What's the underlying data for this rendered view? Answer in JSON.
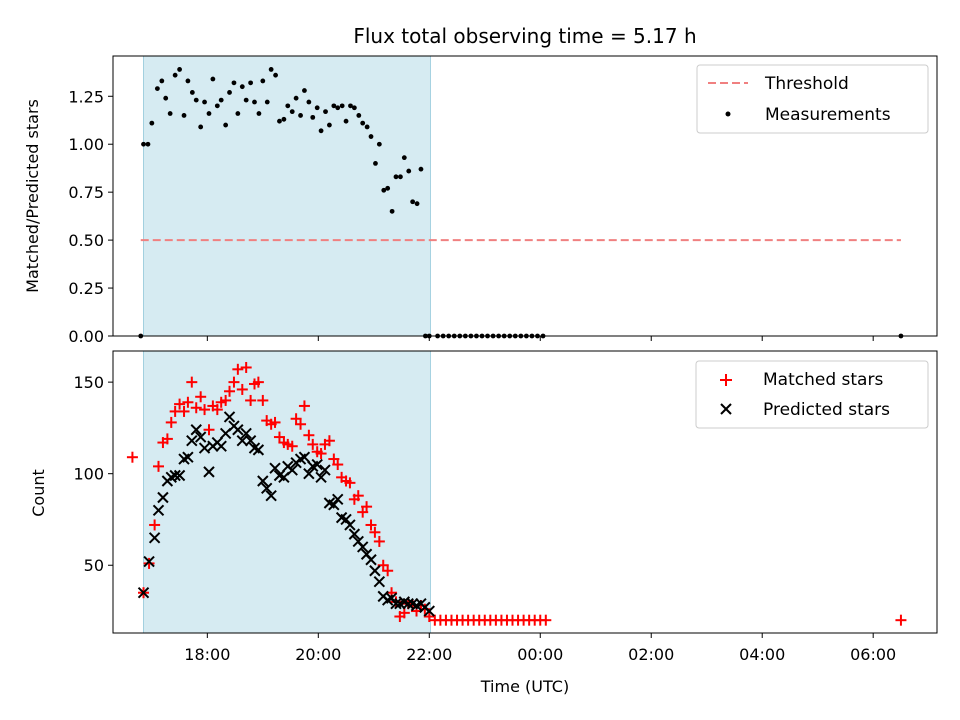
{
  "figure": {
    "title": "Flux total observing time = 5.17 h",
    "xlabel": "Time (UTC)",
    "x_ticks": [
      "18:00",
      "20:00",
      "22:00",
      "00:00",
      "02:00",
      "04:00",
      "06:00"
    ],
    "x_range_hours": [
      16.3,
      31.15
    ],
    "observing_window_hours": [
      16.85,
      22.02
    ]
  },
  "chart_data": [
    {
      "type": "scatter",
      "ylabel": "Matched/Predicted stars",
      "ylim": [
        0,
        1.46
      ],
      "y_ticks": [
        "0.00",
        "0.25",
        "0.50",
        "0.75",
        "1.00",
        "1.25"
      ],
      "legend": "top-right",
      "threshold": {
        "name": "Threshold",
        "value": 0.5,
        "x_start": 16.8,
        "x_end": 30.5,
        "color": "#f08080"
      },
      "series": [
        {
          "name": "Measurements",
          "color": "#000000",
          "x": [
            16.8,
            16.85,
            16.93,
            17.0,
            17.1,
            17.18,
            17.25,
            17.33,
            17.42,
            17.5,
            17.58,
            17.65,
            17.73,
            17.8,
            17.88,
            17.95,
            18.03,
            18.1,
            18.18,
            18.25,
            18.33,
            18.4,
            18.48,
            18.55,
            18.63,
            18.7,
            18.78,
            18.85,
            18.93,
            19.0,
            19.08,
            19.15,
            19.23,
            19.3,
            19.38,
            19.45,
            19.53,
            19.6,
            19.68,
            19.75,
            19.83,
            19.9,
            19.98,
            20.05,
            20.13,
            20.2,
            20.28,
            20.35,
            20.43,
            20.5,
            20.58,
            20.65,
            20.73,
            20.8,
            20.88,
            20.95,
            21.03,
            21.1,
            21.18,
            21.25,
            21.33,
            21.4,
            21.48,
            21.55,
            21.63,
            21.7,
            21.78,
            21.85,
            21.93,
            22.0,
            22.15,
            22.25,
            22.35,
            22.45,
            22.55,
            22.65,
            22.75,
            22.85,
            22.95,
            23.05,
            23.15,
            23.25,
            23.35,
            23.45,
            23.55,
            23.65,
            23.75,
            23.85,
            23.95,
            24.05,
            30.5
          ],
          "y": [
            0.0,
            1.0,
            1.0,
            1.11,
            1.29,
            1.33,
            1.24,
            1.16,
            1.36,
            1.39,
            1.15,
            1.33,
            1.27,
            1.23,
            1.09,
            1.22,
            1.16,
            1.34,
            1.2,
            1.23,
            1.1,
            1.27,
            1.32,
            1.16,
            1.3,
            1.23,
            1.32,
            1.22,
            1.16,
            1.33,
            1.22,
            1.39,
            1.36,
            1.12,
            1.13,
            1.2,
            1.17,
            1.24,
            1.15,
            1.28,
            1.22,
            1.14,
            1.19,
            1.07,
            1.17,
            1.1,
            1.2,
            1.19,
            1.2,
            1.12,
            1.2,
            1.19,
            1.15,
            1.11,
            1.09,
            1.04,
            0.9,
            1.0,
            0.76,
            0.77,
            0.65,
            0.83,
            0.83,
            0.93,
            0.86,
            0.7,
            0.69,
            0.87,
            0.0,
            0.0,
            0.0,
            0.0,
            0.0,
            0.0,
            0.0,
            0.0,
            0.0,
            0.0,
            0.0,
            0.0,
            0.0,
            0.0,
            0.0,
            0.0,
            0.0,
            0.0,
            0.0,
            0.0,
            0.0,
            0.0,
            0.0
          ]
        }
      ]
    },
    {
      "type": "scatter",
      "ylabel": "Count",
      "ylim": [
        13,
        167
      ],
      "y_ticks": [
        "50",
        "100",
        "150"
      ],
      "legend": "top-right",
      "series": [
        {
          "name": "Matched stars",
          "color": "#ff0000",
          "marker": "plus",
          "x": [
            16.65,
            16.85,
            16.95,
            17.05,
            17.12,
            17.2,
            17.28,
            17.35,
            17.42,
            17.5,
            17.58,
            17.65,
            17.72,
            17.8,
            17.88,
            17.95,
            18.03,
            18.1,
            18.18,
            18.25,
            18.33,
            18.4,
            18.48,
            18.55,
            18.63,
            18.7,
            18.78,
            18.85,
            18.92,
            19.0,
            19.07,
            19.15,
            19.22,
            19.3,
            19.38,
            19.45,
            19.53,
            19.6,
            19.68,
            19.75,
            19.83,
            19.9,
            19.98,
            20.05,
            20.12,
            20.2,
            20.28,
            20.35,
            20.42,
            20.5,
            20.57,
            20.65,
            20.72,
            20.8,
            20.87,
            20.95,
            21.02,
            21.1,
            21.17,
            21.25,
            21.32,
            21.4,
            21.47,
            21.55,
            21.62,
            21.7,
            21.77,
            21.85,
            21.92,
            22.0,
            22.1,
            22.2,
            22.3,
            22.4,
            22.5,
            22.6,
            22.7,
            22.8,
            22.9,
            23.0,
            23.1,
            23.2,
            23.3,
            23.4,
            23.5,
            23.6,
            23.7,
            23.8,
            23.9,
            24.0,
            24.1,
            30.5
          ],
          "y": [
            109,
            35,
            51,
            72,
            104,
            117,
            119,
            128,
            134,
            138,
            134,
            139,
            150,
            136,
            142,
            135,
            124,
            137,
            135,
            139,
            140,
            145,
            150,
            157,
            146,
            158,
            140,
            149,
            150,
            140,
            129,
            127,
            128,
            120,
            117,
            116,
            115,
            130,
            127,
            137,
            121,
            116,
            112,
            111,
            116,
            118,
            108,
            105,
            98,
            96,
            95,
            86,
            88,
            79,
            82,
            72,
            68,
            63,
            50,
            47,
            35,
            30,
            22,
            24,
            29,
            28,
            25,
            28,
            26,
            22,
            20,
            20,
            20,
            20,
            20,
            20,
            20,
            20,
            20,
            20,
            20,
            20,
            20,
            20,
            20,
            20,
            20,
            20,
            20,
            20,
            20,
            20
          ]
        },
        {
          "name": "Predicted stars",
          "color": "#000000",
          "marker": "x",
          "x": [
            16.85,
            16.95,
            17.05,
            17.12,
            17.2,
            17.28,
            17.35,
            17.42,
            17.5,
            17.58,
            17.65,
            17.72,
            17.8,
            17.88,
            17.95,
            18.03,
            18.1,
            18.18,
            18.25,
            18.33,
            18.4,
            18.48,
            18.55,
            18.63,
            18.7,
            18.78,
            18.85,
            18.92,
            19.0,
            19.07,
            19.15,
            19.22,
            19.3,
            19.38,
            19.45,
            19.53,
            19.6,
            19.68,
            19.75,
            19.83,
            19.9,
            19.98,
            20.05,
            20.12,
            20.2,
            20.28,
            20.35,
            20.42,
            20.5,
            20.57,
            20.65,
            20.72,
            20.8,
            20.87,
            20.95,
            21.02,
            21.1,
            21.17,
            21.25,
            21.32,
            21.4,
            21.47,
            21.55,
            21.62,
            21.7,
            21.77,
            21.85,
            21.92,
            22.0
          ],
          "y": [
            35,
            52,
            65,
            80,
            87,
            96,
            98,
            99,
            99,
            108,
            109,
            118,
            124,
            120,
            114,
            101,
            115,
            117,
            115,
            122,
            131,
            126,
            124,
            118,
            122,
            118,
            114,
            113,
            96,
            92,
            88,
            103,
            99,
            98,
            104,
            102,
            106,
            108,
            109,
            100,
            104,
            105,
            98,
            102,
            84,
            83,
            86,
            76,
            75,
            72,
            67,
            63,
            60,
            56,
            53,
            47,
            41,
            33,
            31,
            32,
            29,
            29,
            30,
            29,
            29,
            28,
            29,
            27,
            25
          ]
        }
      ]
    }
  ]
}
